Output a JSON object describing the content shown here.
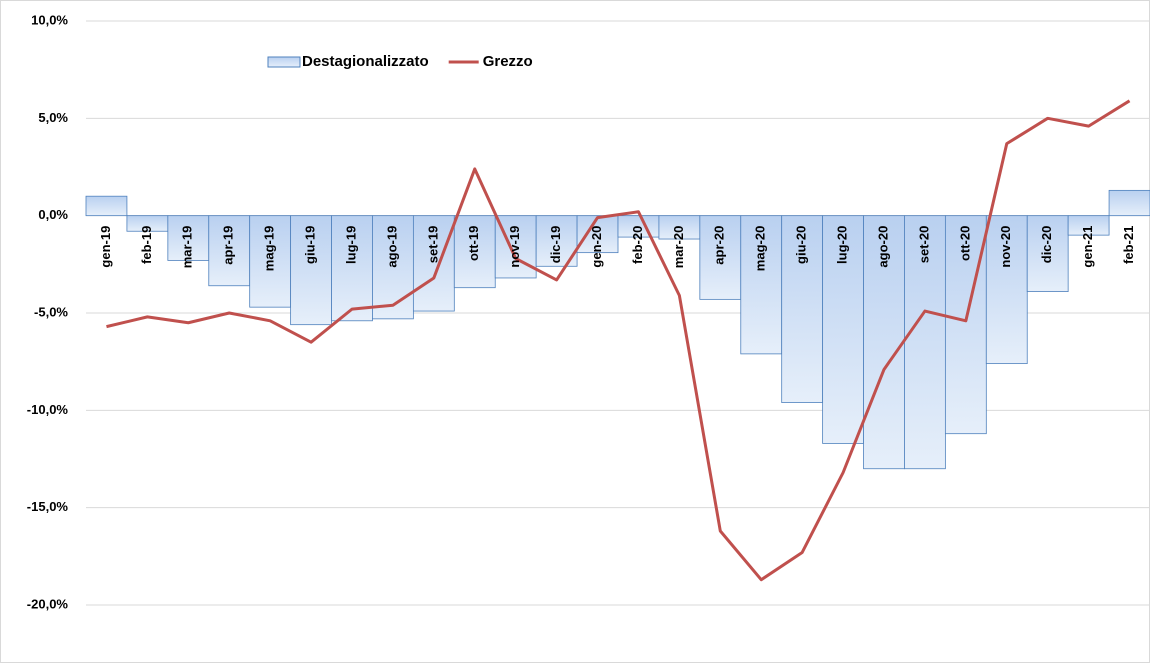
{
  "chart_data": {
    "type": "bar_line",
    "categories": [
      "gen-19",
      "feb-19",
      "mar-19",
      "apr-19",
      "mag-19",
      "giu-19",
      "lug-19",
      "ago-19",
      "set-19",
      "ott-19",
      "nov-19",
      "dic-19",
      "gen-20",
      "feb-20",
      "mar-20",
      "apr-20",
      "mag-20",
      "giu-20",
      "lug-20",
      "ago-20",
      "set-20",
      "ott-20",
      "nov-20",
      "dic-20",
      "gen-21",
      "feb-21"
    ],
    "series": [
      {
        "name": "Destagionalizzato",
        "type": "bar",
        "color": "#4f81bd",
        "values": [
          1.0,
          -0.8,
          -2.3,
          -3.6,
          -4.7,
          -5.6,
          -5.4,
          -5.3,
          -4.9,
          -3.7,
          -3.2,
          -2.6,
          -1.9,
          -1.1,
          -1.2,
          -4.3,
          -7.1,
          -9.6,
          -11.7,
          -13.0,
          -13.0,
          -11.2,
          -7.6,
          -3.9,
          -1.0,
          1.3
        ]
      },
      {
        "name": "Grezzo",
        "type": "line",
        "color": "#c0504d",
        "values": [
          -5.7,
          -5.2,
          -5.5,
          -5.0,
          -5.4,
          -6.5,
          -4.8,
          -4.6,
          -3.2,
          2.4,
          -2.2,
          -3.3,
          -0.1,
          0.2,
          -4.1,
          -16.2,
          -18.7,
          -17.3,
          -13.2,
          -7.9,
          -4.9,
          -5.4,
          3.7,
          5.0,
          4.6,
          5.9
        ]
      }
    ],
    "ylim": [
      -20,
      10
    ],
    "yticks": [
      {
        "value": -20,
        "label": "-20,0%"
      },
      {
        "value": -15,
        "label": "-15,0%"
      },
      {
        "value": -10,
        "label": "-10,0%"
      },
      {
        "value": -5,
        "label": "-5,0%"
      },
      {
        "value": 0,
        "label": "0,0%"
      },
      {
        "value": 5,
        "label": "5,0%"
      },
      {
        "value": 10,
        "label": "10,0%"
      }
    ],
    "grid": true,
    "legend": "top"
  }
}
